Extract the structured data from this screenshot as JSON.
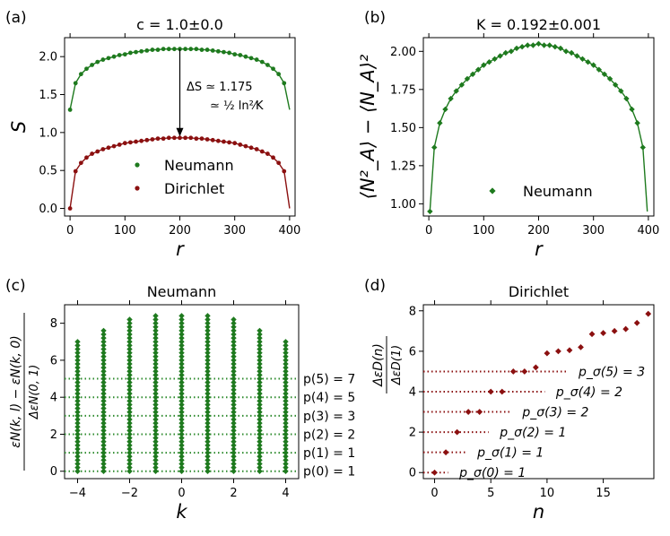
{
  "colors": {
    "green": "#1e7a1e",
    "red": "#8b1010",
    "dot_green": "#2e8b2e"
  },
  "chart_data": [
    {
      "id": "a",
      "type": "scatter",
      "panel_label": "(a)",
      "title": "c = 1.0±0.0",
      "xlabel": "r",
      "ylabel": "S",
      "xlim": [
        -10,
        410
      ],
      "ylim": [
        -0.1,
        2.25
      ],
      "xticks": [
        0,
        100,
        200,
        300,
        400
      ],
      "yticks": [
        0.0,
        0.5,
        1.0,
        1.5,
        2.0
      ],
      "series": [
        {
          "name": "Neumann",
          "color": "#1e7a1e",
          "x": [
            0,
            10,
            20,
            30,
            40,
            50,
            60,
            70,
            80,
            90,
            100,
            110,
            120,
            130,
            140,
            150,
            160,
            170,
            180,
            190,
            200,
            210,
            220,
            230,
            240,
            250,
            260,
            270,
            280,
            290,
            300,
            310,
            320,
            330,
            340,
            350,
            360,
            370,
            380,
            390
          ],
          "values": [
            1.3,
            1.65,
            1.77,
            1.84,
            1.89,
            1.93,
            1.96,
            1.98,
            2.0,
            2.02,
            2.03,
            2.05,
            2.06,
            2.07,
            2.08,
            2.09,
            2.09,
            2.1,
            2.1,
            2.1,
            2.1,
            2.1,
            2.1,
            2.1,
            2.09,
            2.09,
            2.08,
            2.07,
            2.06,
            2.05,
            2.03,
            2.02,
            2.0,
            1.98,
            1.96,
            1.93,
            1.89,
            1.84,
            1.77,
            1.65
          ]
        },
        {
          "name": "Dirichlet",
          "color": "#8b1010",
          "x": [
            0,
            10,
            20,
            30,
            40,
            50,
            60,
            70,
            80,
            90,
            100,
            110,
            120,
            130,
            140,
            150,
            160,
            170,
            180,
            190,
            200,
            210,
            220,
            230,
            240,
            250,
            260,
            270,
            280,
            290,
            300,
            310,
            320,
            330,
            340,
            350,
            360,
            370,
            380,
            390
          ],
          "values": [
            0.0,
            0.49,
            0.6,
            0.67,
            0.72,
            0.75,
            0.78,
            0.8,
            0.82,
            0.84,
            0.86,
            0.87,
            0.88,
            0.89,
            0.9,
            0.91,
            0.92,
            0.92,
            0.93,
            0.93,
            0.93,
            0.93,
            0.93,
            0.92,
            0.92,
            0.91,
            0.9,
            0.89,
            0.88,
            0.87,
            0.86,
            0.84,
            0.82,
            0.8,
            0.78,
            0.75,
            0.72,
            0.67,
            0.6,
            0.49
          ]
        }
      ],
      "legend": [
        "Neumann",
        "Dirichlet"
      ],
      "legend_position": "lower-center",
      "annotation": {
        "line1": "ΔS ≃ 1.175",
        "line2": "≃ ½ ln²⁄K"
      }
    },
    {
      "id": "b",
      "type": "scatter",
      "panel_label": "(b)",
      "title": "K = 0.192±0.001",
      "xlabel": "r",
      "ylabel": "⟨N²_A⟩ − ⟨N_A⟩²",
      "xlim": [
        -10,
        410
      ],
      "ylim": [
        0.92,
        2.09
      ],
      "xticks": [
        0,
        100,
        200,
        300,
        400
      ],
      "yticks": [
        1.0,
        1.25,
        1.5,
        1.75,
        2.0
      ],
      "series": [
        {
          "name": "Neumann",
          "color": "#1e7a1e",
          "x": [
            2,
            10,
            20,
            30,
            40,
            50,
            60,
            70,
            80,
            90,
            100,
            110,
            120,
            130,
            140,
            150,
            160,
            170,
            180,
            190,
            200,
            210,
            220,
            230,
            240,
            250,
            260,
            270,
            280,
            290,
            300,
            310,
            320,
            330,
            340,
            350,
            360,
            370,
            380,
            390
          ],
          "values": [
            0.95,
            1.37,
            1.53,
            1.62,
            1.69,
            1.74,
            1.78,
            1.82,
            1.85,
            1.88,
            1.91,
            1.93,
            1.95,
            1.97,
            1.99,
            2.0,
            2.02,
            2.03,
            2.04,
            2.04,
            2.05,
            2.04,
            2.04,
            2.03,
            2.02,
            2.0,
            1.99,
            1.97,
            1.95,
            1.93,
            1.91,
            1.88,
            1.85,
            1.82,
            1.78,
            1.74,
            1.69,
            1.62,
            1.53,
            1.37
          ]
        }
      ],
      "legend": [
        "Neumann"
      ],
      "legend_position": "lower-center"
    },
    {
      "id": "c",
      "type": "scatter",
      "panel_label": "(c)",
      "title": "Neumann",
      "xlabel": "k",
      "ylabel": "[ε_N(k,l) − ε_N(k,0)] / Δε_N(0,1)",
      "xlim": [
        -4.5,
        4.5
      ],
      "ylim": [
        -0.4,
        9.0
      ],
      "xticks": [
        -4,
        -2,
        0,
        2,
        4
      ],
      "yticks": [
        0,
        2,
        4,
        6,
        8
      ],
      "k_values": [
        -4,
        -3,
        -2,
        -1,
        0,
        1,
        2,
        3,
        4
      ],
      "column_max": [
        7.0,
        7.7,
        8.2,
        8.5,
        8.5,
        8.5,
        8.2,
        7.7,
        7.0
      ],
      "levels": [
        0,
        1,
        2,
        3,
        4,
        5
      ],
      "level_labels": [
        "p(0) = 1",
        "p(1) = 1",
        "p(2) = 2",
        "p(3) = 3",
        "p(4) = 5",
        "p(5) = 7"
      ]
    },
    {
      "id": "d",
      "type": "scatter",
      "panel_label": "(d)",
      "title": "Dirichlet",
      "xlabel": "n",
      "ylabel": "Δε_D(n) / Δε_D(1)",
      "xlim": [
        -1.0,
        19.5
      ],
      "ylim": [
        -0.3,
        8.3
      ],
      "xticks": [
        0,
        5,
        10,
        15
      ],
      "yticks": [
        0,
        2,
        4,
        6,
        8
      ],
      "x": [
        0,
        1,
        2,
        3,
        4,
        5,
        6,
        7,
        8,
        9,
        10,
        11,
        12,
        13,
        14,
        15,
        16,
        17,
        18,
        19
      ],
      "values": [
        0,
        1,
        2,
        3,
        3,
        4,
        4,
        5,
        5,
        5.2,
        5.9,
        6.0,
        6.05,
        6.2,
        6.85,
        6.9,
        7.0,
        7.1,
        7.4,
        7.85
      ],
      "levels": [
        0,
        1,
        2,
        3,
        4,
        5
      ],
      "level_labels": [
        "p_σ(0) = 1",
        "p_σ(1) = 1",
        "p_σ(2) = 1",
        "p_σ(3) = 2",
        "p_σ(4) = 2",
        "p_σ(5) = 3"
      ]
    }
  ]
}
